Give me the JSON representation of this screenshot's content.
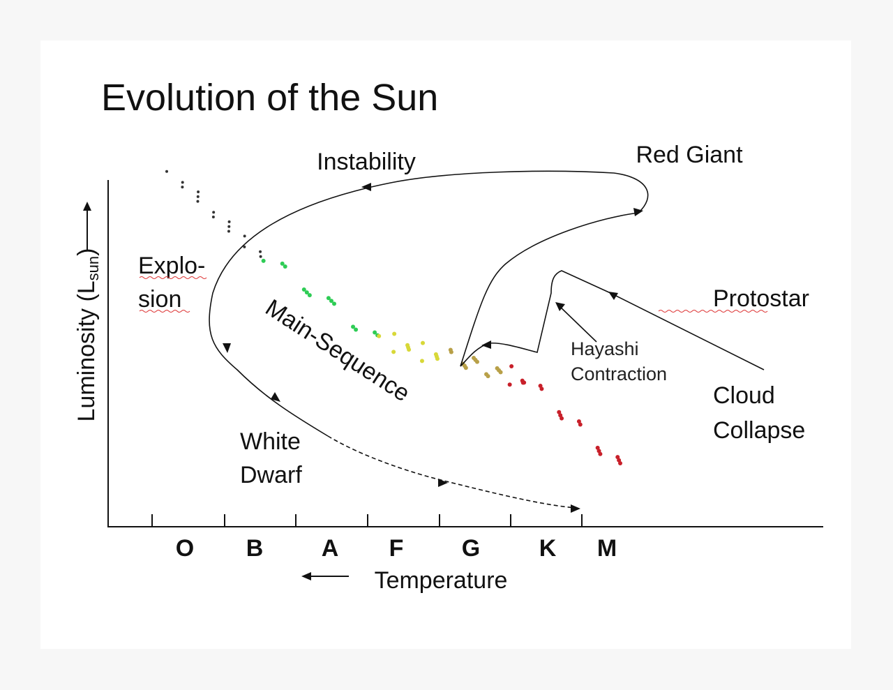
{
  "title": "Evolution of the Sun",
  "y_axis": {
    "label": "Luminosity (L",
    "subscript": "sun",
    "close": ")"
  },
  "x_axis": {
    "label": "Temperature",
    "classes": [
      "O",
      "B",
      "A",
      "F",
      "G",
      "K",
      "M"
    ]
  },
  "labels": {
    "instability": "Instability",
    "red_giant": "Red Giant",
    "explosion": [
      "Explo-",
      "sion"
    ],
    "main_sequence": "Main-Sequence",
    "protostar": "Protostar",
    "hayashi": [
      "Hayashi",
      "Contraction"
    ],
    "cloud_collapse": [
      "Cloud",
      "Collapse"
    ],
    "white_dwarf": [
      "White",
      "Dwarf"
    ]
  }
}
